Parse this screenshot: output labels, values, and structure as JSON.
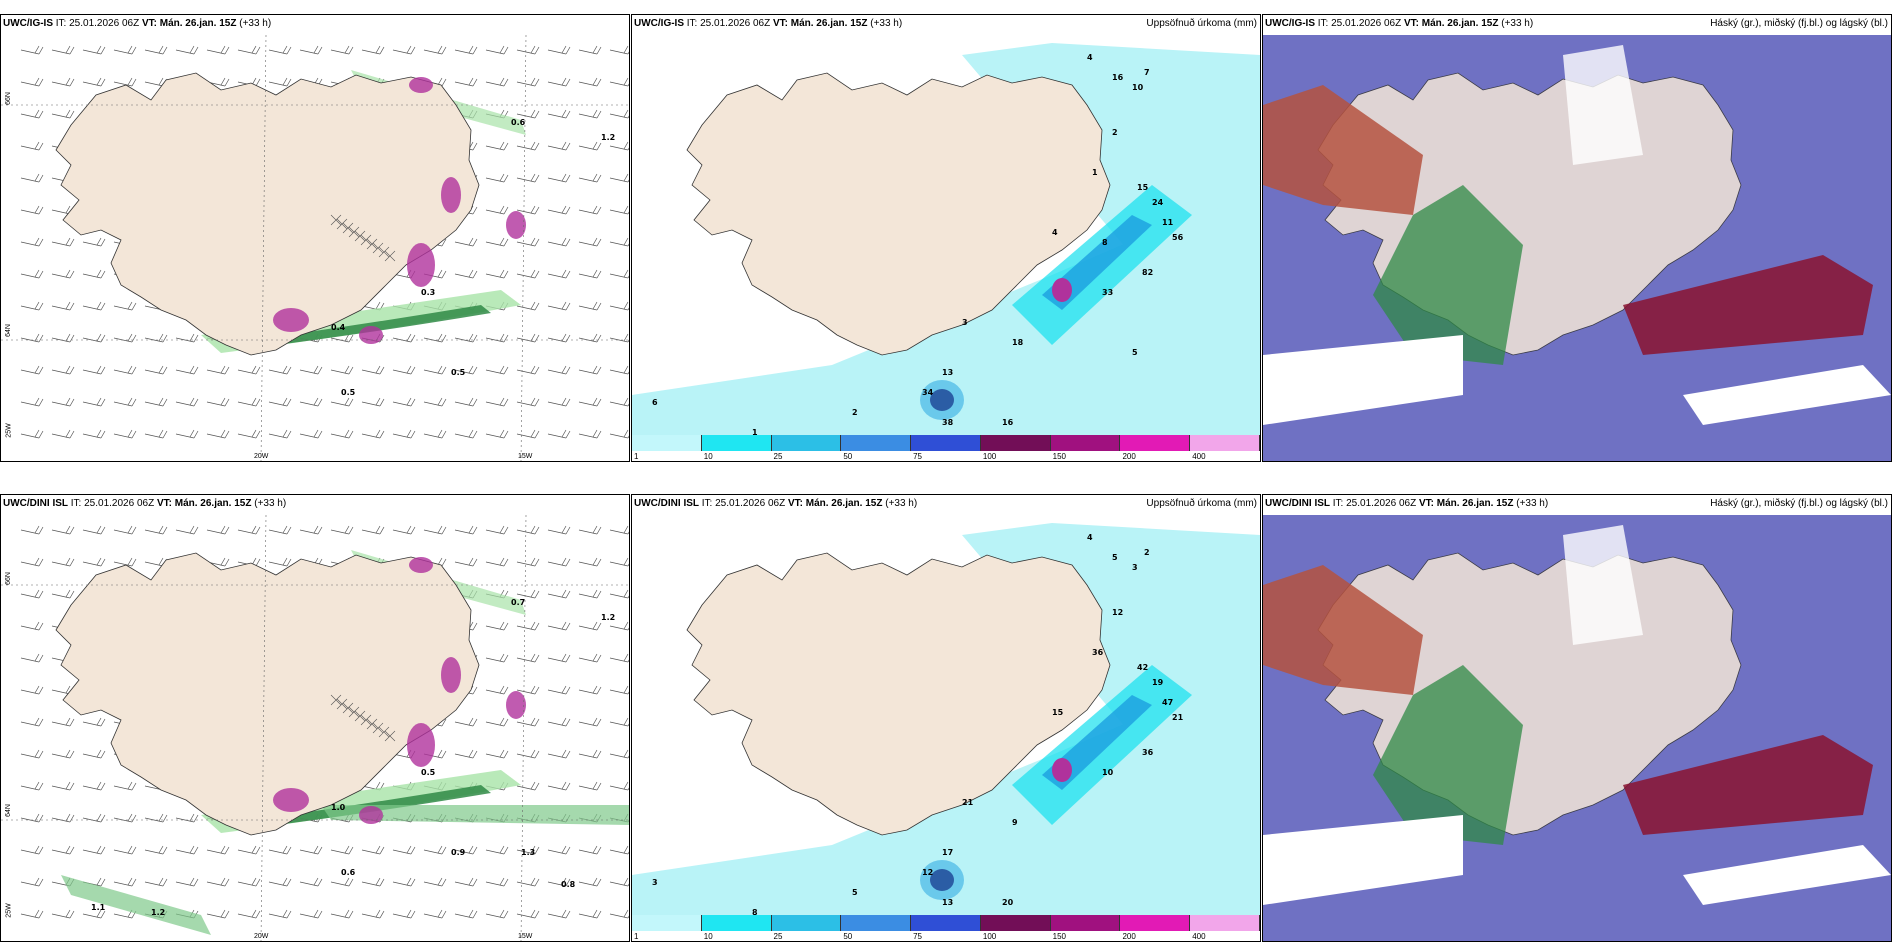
{
  "colors": {
    "land": "#f3e6d8",
    "sea": "#ffffff",
    "wet_light": "#b9f3f7",
    "cyan": "#16e0ee",
    "mid_blue": "#1c9fe0",
    "magenta": "#b0329c",
    "green": "#2f8a45",
    "dark_red": "#8b1330",
    "purple": "#5658b8"
  },
  "rows": [
    {
      "model": "UWC/IG-IS",
      "panels": [
        {
          "type": "pressure",
          "it": "IT: 25.01.2026 06Z",
          "vt_label": "VT:",
          "vt": "Mán. 26.jan. 15Z",
          "lead": "(+33 h)",
          "title": "",
          "lat_labels": [
            "66N",
            "64N",
            "25W"
          ],
          "lon_labels": [
            "20W",
            "15W"
          ],
          "values": [
            "1.2",
            "0.6",
            "0.3",
            "0.5",
            "0.4",
            "0.5"
          ]
        },
        {
          "type": "precip",
          "it": "IT: 25.01.2026 06Z",
          "vt_label": "VT:",
          "vt": "Mán. 26.jan. 15Z",
          "lead": "(+33 h)",
          "title": "Uppsöfnuð úrkoma (mm)",
          "values": [
            "4",
            "16",
            "10",
            "7",
            "2",
            "1",
            "15",
            "24",
            "11",
            "56",
            "82",
            "33",
            "16",
            "13",
            "38",
            "34",
            "18",
            "3",
            "2",
            "1",
            "6",
            "4",
            "8",
            "5"
          ]
        },
        {
          "type": "cloud",
          "it": "IT: 25.01.2026 06Z",
          "vt_label": "VT:",
          "vt": "Mán. 26.jan. 15Z",
          "lead": "(+33 h)",
          "title": "Háský (gr.), miðský (fj.bl.) og lágský (bl.)"
        }
      ]
    },
    {
      "model": "UWC/DINI ISL",
      "panels": [
        {
          "type": "pressure",
          "it": "IT: 25.01.2026 06Z",
          "vt_label": "VT:",
          "vt": "Mán. 26.jan. 15Z",
          "lead": "(+33 h)",
          "title": "",
          "lat_labels": [
            "66N",
            "64N",
            "25W"
          ],
          "lon_labels": [
            "20W",
            "15W"
          ],
          "values": [
            "1.2",
            "0.7",
            "0.5",
            "0.6",
            "1.0",
            "0.9",
            "1.1",
            "1.2",
            "0.8",
            "1.3"
          ]
        },
        {
          "type": "precip",
          "it": "IT: 25.01.2026 06Z",
          "vt_label": "VT:",
          "vt": "Mán. 26.jan. 15Z",
          "lead": "(+33 h)",
          "title": "Uppsöfnuð úrkoma (mm)",
          "values": [
            "4",
            "5",
            "3",
            "2",
            "12",
            "36",
            "42",
            "19",
            "47",
            "21",
            "36",
            "10",
            "20",
            "17",
            "13",
            "12",
            "9",
            "21",
            "5",
            "8",
            "3",
            "15"
          ]
        },
        {
          "type": "cloud",
          "it": "IT: 25.01.2026 06Z",
          "vt_label": "VT:",
          "vt": "Mán. 26.jan. 15Z",
          "lead": "(+33 h)",
          "title": "Háský (gr.), miðský (fj.bl.) og lágský (bl.)"
        }
      ]
    }
  ],
  "legend": {
    "ticks": [
      "1",
      "10",
      "25",
      "50",
      "75",
      "100",
      "150",
      "200",
      "400"
    ],
    "colors": [
      "#c3f7fb",
      "#1fe6f2",
      "#2cbfe6",
      "#3b8de3",
      "#2f4fd6",
      "#720e57",
      "#a0117f",
      "#e21ab5",
      "#f2a6ea"
    ]
  }
}
